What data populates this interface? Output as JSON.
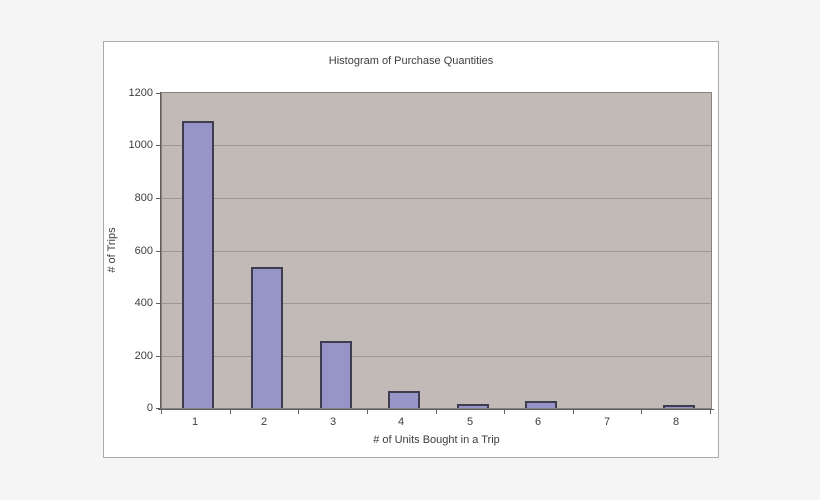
{
  "chart_data": {
    "type": "bar",
    "title": "Histogram of Purchase Quantities",
    "xlabel": "# of Units Bought in a Trip",
    "ylabel": "# of Trips",
    "categories": [
      "1",
      "2",
      "3",
      "4",
      "5",
      "6",
      "7",
      "8"
    ],
    "values": [
      1085,
      530,
      249,
      56,
      8,
      18,
      0,
      5
    ],
    "ylim": [
      0,
      1200
    ],
    "yticks": [
      0,
      200,
      400,
      600,
      800,
      1000,
      1200
    ],
    "grid": true,
    "legend": false,
    "colors": {
      "page_bg": "#f5f5f5",
      "chart_bg": "#ffffff",
      "box_border": "#ababab",
      "plot_bg": "#c2bab7",
      "gridline": "#9d9592",
      "axis": "#5e5e5e",
      "bar_fill": "#9794c8",
      "bar_border": "#3d3d4d",
      "text": "#3d3d3d"
    }
  }
}
